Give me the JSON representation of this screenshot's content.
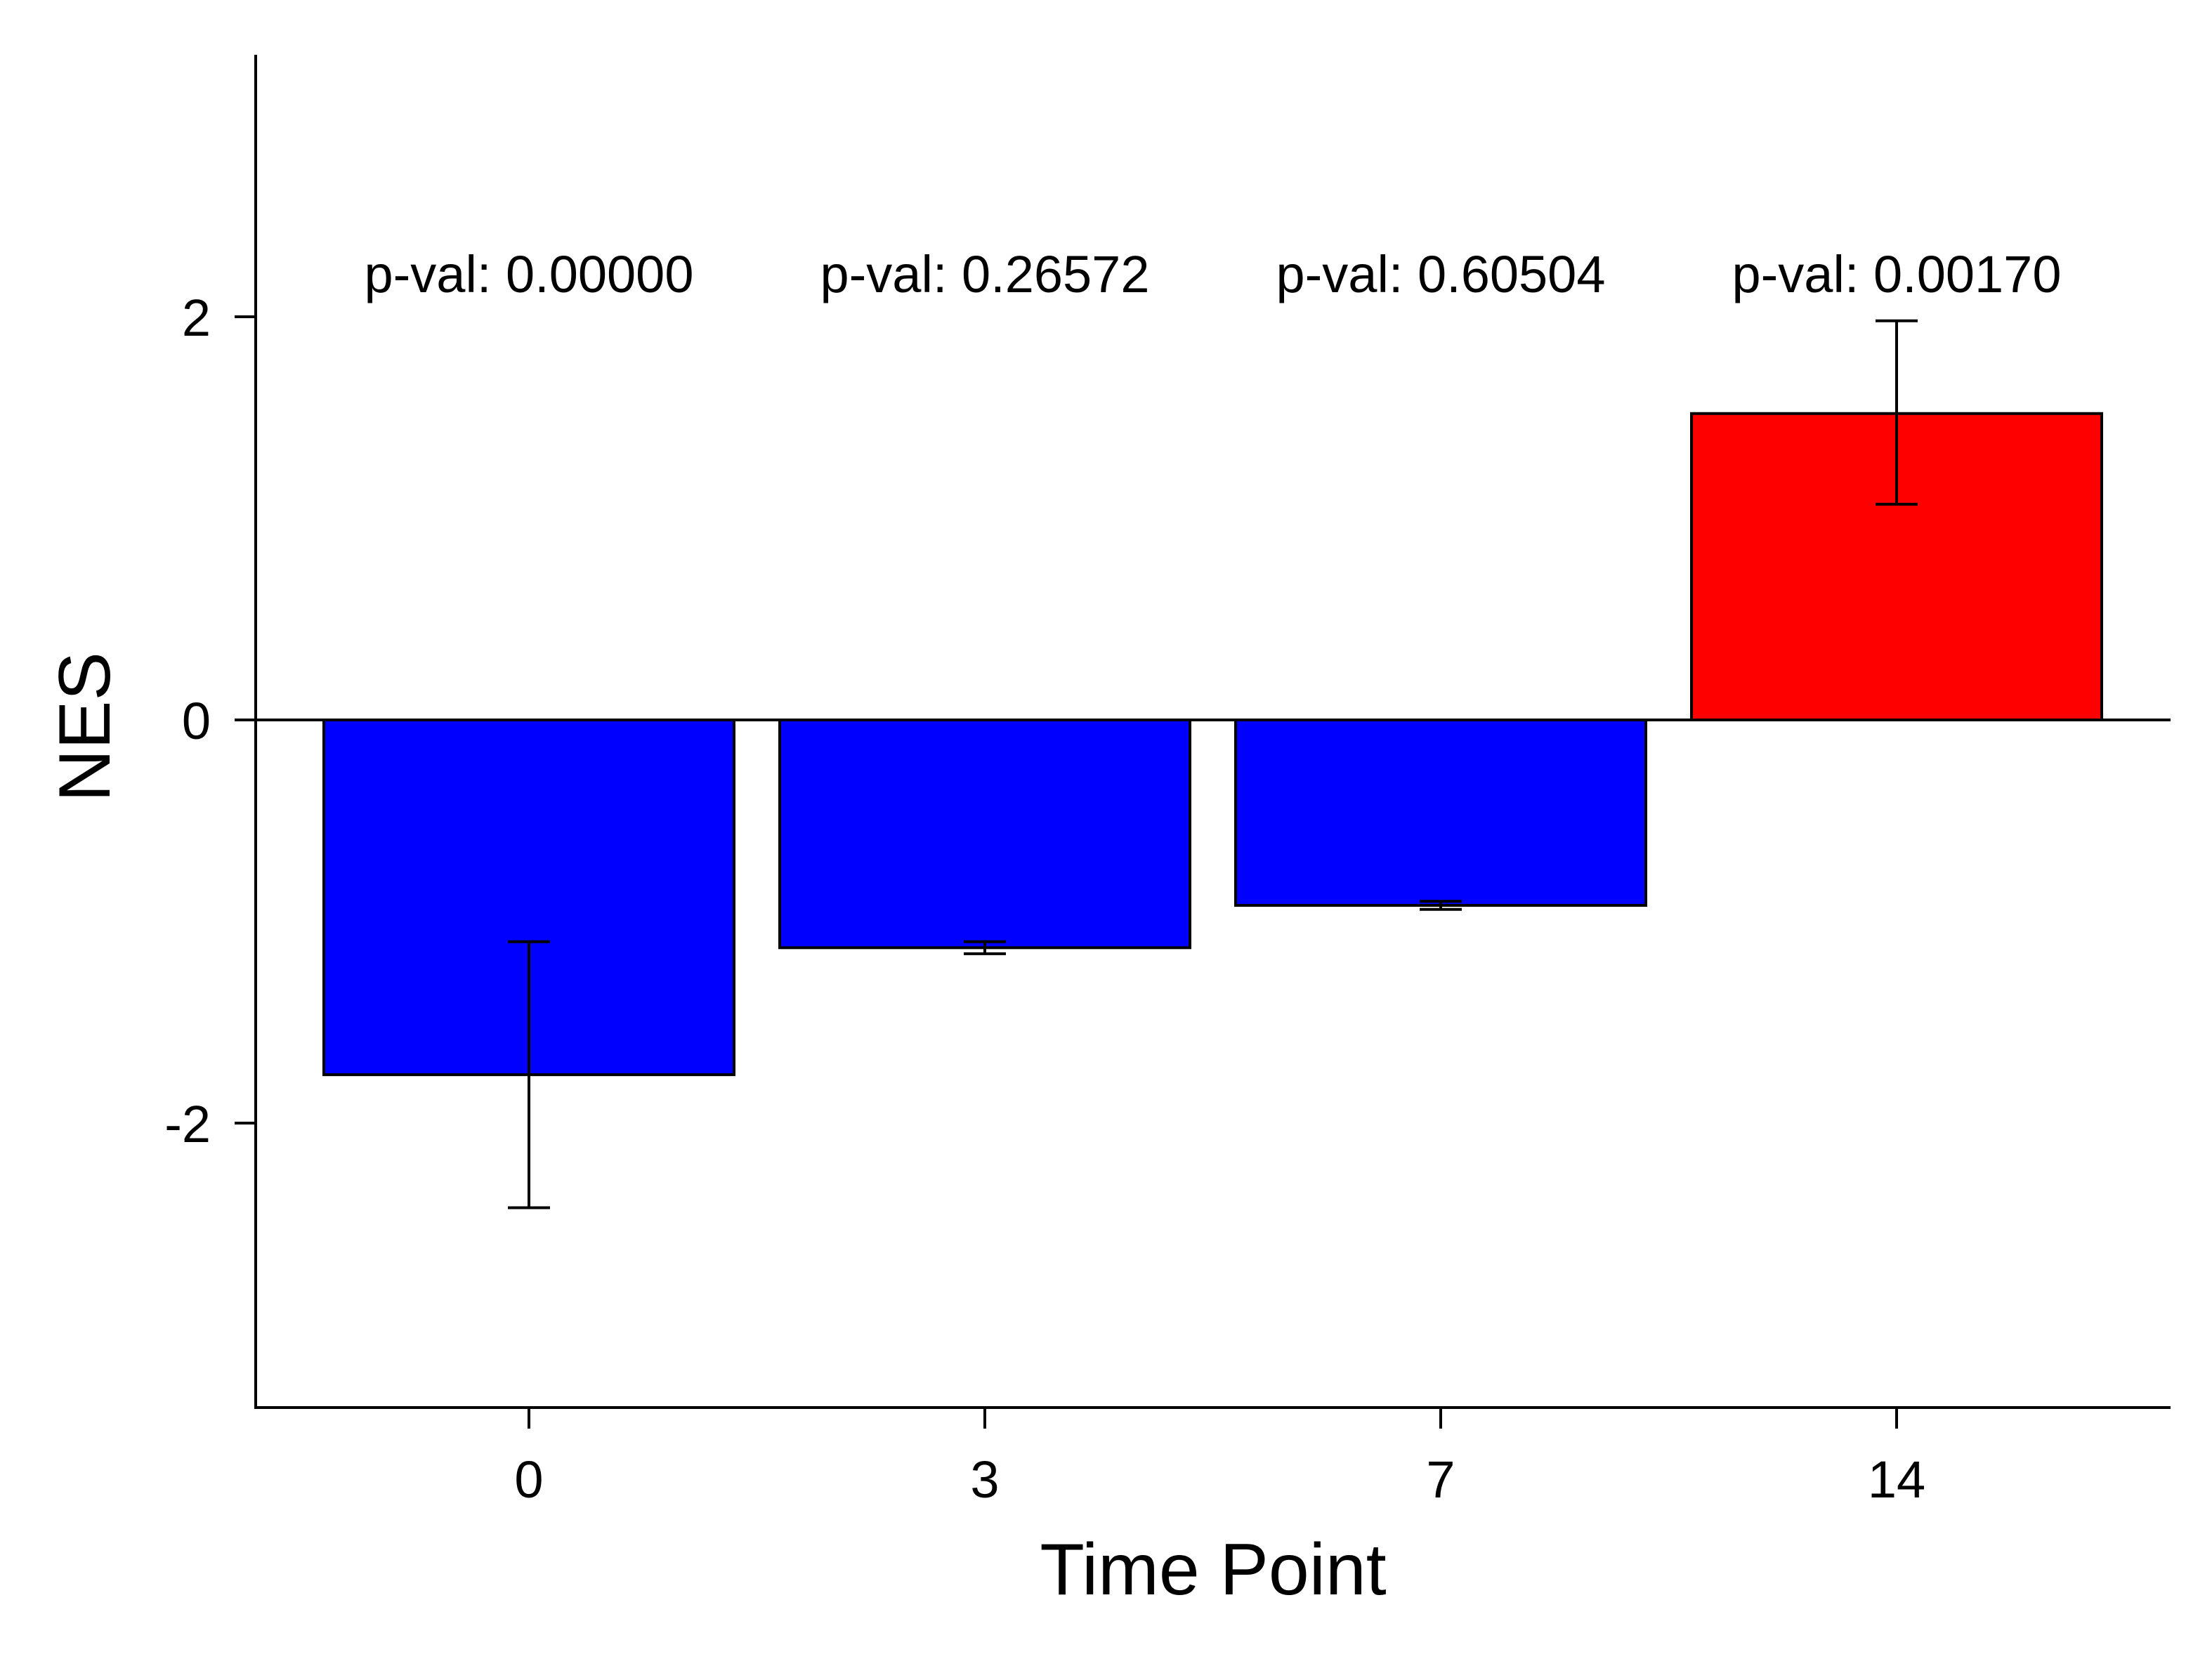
{
  "chart_data": {
    "type": "bar",
    "title": "",
    "xlabel": "Time Point",
    "ylabel": "NES",
    "categories": [
      "0",
      "3",
      "7",
      "14"
    ],
    "values": [
      -1.76,
      -1.13,
      -0.92,
      1.52
    ],
    "error_low": [
      -2.42,
      -1.16,
      -0.94,
      1.07
    ],
    "error_high": [
      -1.1,
      -1.1,
      -0.9,
      1.98
    ],
    "bar_colors": [
      "#0000ff",
      "#0000ff",
      "#0000ff",
      "#ff0000"
    ],
    "annotations": [
      "p-val: 0.00000",
      "p-val: 0.26572",
      "p-val: 0.60504",
      "p-val: 0.00170"
    ],
    "yticks": [
      -2,
      0,
      2
    ],
    "ytick_labels": [
      "-2",
      "0",
      "2"
    ],
    "ylim": [
      -3.4,
      3.3
    ],
    "grid": false,
    "legend": "none"
  }
}
